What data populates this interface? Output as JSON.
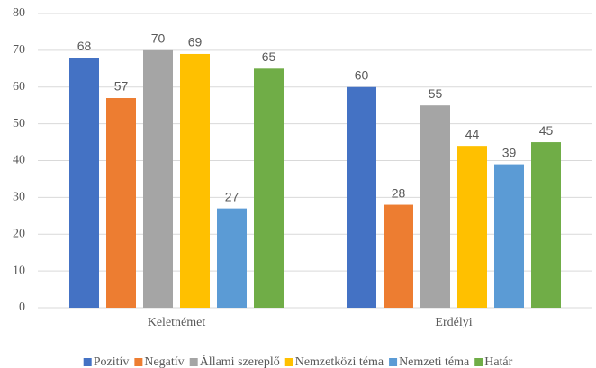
{
  "chart_data": {
    "type": "bar",
    "categories": [
      "Keletnémet",
      "Erdélyi"
    ],
    "series": [
      {
        "name": "Pozitív",
        "color": "#4472c4",
        "values": [
          68,
          60
        ]
      },
      {
        "name": "Negatív",
        "color": "#ed7d31",
        "values": [
          57,
          28
        ]
      },
      {
        "name": "Állami szereplő",
        "color": "#a5a5a5",
        "values": [
          70,
          55
        ]
      },
      {
        "name": "Nemzetközi téma",
        "color": "#ffc000",
        "values": [
          69,
          44
        ]
      },
      {
        "name": "Nemzeti téma",
        "color": "#5b9bd5",
        "values": [
          27,
          39
        ]
      },
      {
        "name": "Határ",
        "color": "#70ad47",
        "values": [
          65,
          45
        ]
      }
    ],
    "ylim": [
      0,
      80
    ],
    "yticks": [
      0,
      10,
      20,
      30,
      40,
      50,
      60,
      70,
      80
    ],
    "grid": true,
    "legend": "bottom",
    "data_labels": true
  }
}
